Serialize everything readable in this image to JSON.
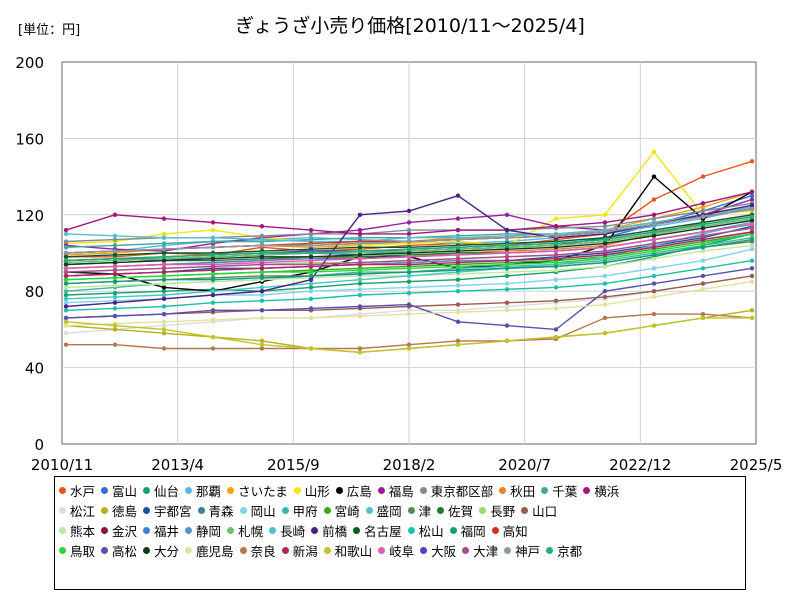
{
  "chart_data": {
    "type": "line",
    "title": "ぎょうざ小売り価格[2010/11～2025/4]",
    "unit_label": "[単位：円]",
    "ylim": [
      0,
      200
    ],
    "yticks": [
      "0",
      "40",
      "80",
      "120",
      "160",
      "200"
    ],
    "xticks": [
      "2010/11",
      "2013/4",
      "2015/9",
      "2018/2",
      "2020/7",
      "2022/12",
      "2025/5"
    ],
    "x_start": "2010-11",
    "x_end": "2025-05",
    "grid": true,
    "legend_placement": "bottom",
    "series": [
      {
        "name": "水戸",
        "color": "#e8541a",
        "values": [
          98,
          98,
          100,
          99,
          103,
          101,
          102,
          104,
          105,
          104,
          107,
          110,
          128,
          140,
          148
        ]
      },
      {
        "name": "富山",
        "color": "#2f6fd0",
        "values": [
          96,
          97,
          96,
          98,
          99,
          100,
          99,
          101,
          102,
          103,
          104,
          108,
          115,
          122,
          130
        ]
      },
      {
        "name": "仙台",
        "color": "#16a06a",
        "values": [
          78,
          79,
          80,
          81,
          80,
          82,
          84,
          85,
          86,
          88,
          90,
          93,
          98,
          104,
          110
        ]
      },
      {
        "name": "那覇",
        "color": "#5ab4ea",
        "values": [
          100,
          101,
          104,
          106,
          107,
          108,
          107,
          106,
          105,
          106,
          108,
          110,
          114,
          118,
          124
        ]
      },
      {
        "name": "さいたま",
        "color": "#f2a314",
        "values": [
          99,
          100,
          102,
          103,
          104,
          103,
          104,
          106,
          108,
          108,
          109,
          112,
          118,
          124,
          132
        ]
      },
      {
        "name": "山形",
        "color": "#f5e50c",
        "values": [
          105,
          106,
          110,
          112,
          108,
          106,
          104,
          105,
          106,
          104,
          118,
          120,
          153,
          120,
          122
        ]
      },
      {
        "name": "広島",
        "color": "#000000",
        "values": [
          90,
          89,
          82,
          80,
          85,
          90,
          98,
          98,
          92,
          94,
          96,
          104,
          140,
          118,
          132
        ]
      },
      {
        "name": "福島",
        "color": "#9a1fa0",
        "values": [
          104,
          102,
          101,
          105,
          108,
          110,
          112,
          116,
          118,
          120,
          114,
          112,
          116,
          120,
          128
        ]
      },
      {
        "name": "東京都区部",
        "color": "#7f8c94",
        "values": [
          106,
          107,
          108,
          108,
          109,
          110,
          110,
          112,
          112,
          112,
          113,
          114,
          118,
          122,
          126
        ]
      },
      {
        "name": "秋田",
        "color": "#f07f2a",
        "values": [
          92,
          93,
          94,
          95,
          96,
          98,
          97,
          98,
          100,
          101,
          102,
          104,
          110,
          116,
          120
        ]
      },
      {
        "name": "千葉",
        "color": "#41a89c",
        "values": [
          103,
          104,
          105,
          106,
          106,
          107,
          108,
          108,
          109,
          110,
          110,
          112,
          116,
          120,
          124
        ]
      },
      {
        "name": "横浜",
        "color": "#a5157d",
        "values": [
          112,
          120,
          118,
          116,
          114,
          112,
          110,
          110,
          112,
          112,
          114,
          116,
          120,
          126,
          132
        ]
      },
      {
        "name": "松江",
        "color": "#dcdcdc",
        "values": [
          58,
          60,
          62,
          64,
          66,
          66,
          68,
          70,
          70,
          72,
          74,
          76,
          80,
          84,
          88
        ]
      },
      {
        "name": "徳島",
        "color": "#b3b21a",
        "values": [
          62,
          60,
          58,
          56,
          54,
          50,
          48,
          50,
          52,
          54,
          56,
          58,
          62,
          66,
          70
        ]
      },
      {
        "name": "宇都宮",
        "color": "#1d4f9e",
        "values": [
          88,
          89,
          90,
          92,
          92,
          93,
          94,
          95,
          96,
          96,
          98,
          100,
          104,
          108,
          114
        ]
      },
      {
        "name": "青森",
        "color": "#3c7f99",
        "values": [
          96,
          97,
          97,
          98,
          99,
          100,
          101,
          101,
          102,
          103,
          104,
          106,
          110,
          114,
          118
        ]
      },
      {
        "name": "岡山",
        "color": "#7fd3ec",
        "values": [
          74,
          75,
          76,
          78,
          78,
          80,
          81,
          82,
          83,
          84,
          86,
          88,
          92,
          96,
          102
        ]
      },
      {
        "name": "甲府",
        "color": "#3cb8a8",
        "values": [
          80,
          82,
          84,
          85,
          86,
          88,
          90,
          90,
          92,
          93,
          94,
          96,
          100,
          104,
          108
        ]
      },
      {
        "name": "宮崎",
        "color": "#3aa81e",
        "values": [
          86,
          87,
          88,
          89,
          90,
          91,
          92,
          93,
          94,
          95,
          96,
          98,
          102,
          106,
          110
        ]
      },
      {
        "name": "盛岡",
        "color": "#55c0d0",
        "values": [
          110,
          109,
          108,
          108,
          107,
          106,
          106,
          108,
          108,
          109,
          110,
          112,
          116,
          120,
          124
        ]
      },
      {
        "name": "津",
        "color": "#56875a",
        "values": [
          84,
          85,
          86,
          87,
          88,
          88,
          89,
          90,
          91,
          92,
          93,
          95,
          99,
          103,
          106
        ]
      },
      {
        "name": "佐賀",
        "color": "#1e7d2c",
        "values": [
          94,
          95,
          96,
          96,
          97,
          98,
          98,
          99,
          100,
          100,
          101,
          103,
          107,
          111,
          115
        ]
      },
      {
        "name": "長野",
        "color": "#9adc6a",
        "values": [
          90,
          91,
          92,
          93,
          94,
          95,
          95,
          96,
          97,
          98,
          99,
          101,
          105,
          109,
          113
        ]
      },
      {
        "name": "山口",
        "color": "#9a5a4e",
        "values": [
          66,
          67,
          68,
          69,
          70,
          70,
          71,
          72,
          73,
          74,
          75,
          77,
          80,
          84,
          88
        ]
      },
      {
        "name": "熊本",
        "color": "#c2e8a0",
        "values": [
          82,
          83,
          84,
          85,
          86,
          87,
          88,
          88,
          89,
          90,
          91,
          93,
          97,
          101,
          104
        ]
      },
      {
        "name": "金沢",
        "color": "#8e1236",
        "values": [
          100,
          101,
          102,
          103,
          104,
          104,
          105,
          106,
          107,
          108,
          109,
          111,
          115,
          119,
          123
        ]
      },
      {
        "name": "福井",
        "color": "#4a7dd6",
        "values": [
          92,
          93,
          94,
          95,
          96,
          97,
          97,
          98,
          99,
          100,
          101,
          103,
          107,
          111,
          116
        ]
      },
      {
        "name": "静岡",
        "color": "#5f90c4",
        "values": [
          88,
          89,
          90,
          91,
          92,
          93,
          94,
          95,
          96,
          96,
          97,
          99,
          103,
          107,
          111
        ]
      },
      {
        "name": "札幌",
        "color": "#6fbf6f",
        "values": [
          95,
          96,
          97,
          98,
          99,
          100,
          100,
          101,
          102,
          103,
          104,
          106,
          110,
          114,
          118
        ]
      },
      {
        "name": "長崎",
        "color": "#48c6c6",
        "values": [
          76,
          77,
          78,
          80,
          82,
          84,
          86,
          88,
          90,
          92,
          94,
          98,
          104,
          110,
          116
        ]
      },
      {
        "name": "前橋",
        "color": "#4b2380",
        "values": [
          72,
          74,
          76,
          78,
          80,
          86,
          120,
          122,
          130,
          112,
          108,
          110,
          115,
          120,
          125
        ]
      },
      {
        "name": "名古屋",
        "color": "#0a5a22",
        "values": [
          98,
          99,
          100,
          100,
          101,
          102,
          103,
          103,
          104,
          105,
          106,
          108,
          112,
          116,
          120
        ]
      },
      {
        "name": "松山",
        "color": "#1cc0a8",
        "values": [
          70,
          71,
          72,
          74,
          75,
          76,
          78,
          79,
          80,
          81,
          82,
          84,
          88,
          92,
          96
        ]
      },
      {
        "name": "福岡",
        "color": "#1a9a7a",
        "values": [
          84,
          85,
          86,
          86,
          87,
          88,
          89,
          90,
          91,
          92,
          93,
          95,
          99,
          103,
          107
        ]
      },
      {
        "name": "高知",
        "color": "#d4301f",
        "values": [
          100,
          101,
          102,
          103,
          104,
          105,
          106,
          106,
          107,
          108,
          109,
          111,
          115,
          119,
          123
        ]
      },
      {
        "name": "鳥取",
        "color": "#27d83c",
        "values": [
          86,
          87,
          88,
          89,
          90,
          90,
          91,
          92,
          93,
          94,
          95,
          97,
          101,
          105,
          110
        ]
      },
      {
        "name": "高松",
        "color": "#5a4fb0",
        "values": [
          66,
          67,
          68,
          70,
          70,
          71,
          72,
          73,
          64,
          62,
          60,
          80,
          84,
          88,
          92
        ]
      },
      {
        "name": "大分",
        "color": "#0f3d1c",
        "values": [
          94,
          95,
          96,
          97,
          98,
          98,
          99,
          100,
          101,
          102,
          103,
          105,
          109,
          113,
          117
        ]
      },
      {
        "name": "鹿児島",
        "color": "#e6e0a0",
        "values": [
          62,
          63,
          64,
          65,
          66,
          66,
          67,
          68,
          69,
          70,
          71,
          73,
          77,
          81,
          85
        ]
      },
      {
        "name": "奈良",
        "color": "#b7774e",
        "values": [
          52,
          52,
          50,
          50,
          50,
          50,
          50,
          52,
          54,
          54,
          55,
          66,
          68,
          68,
          66
        ]
      },
      {
        "name": "新潟",
        "color": "#b3245e",
        "values": [
          88,
          89,
          90,
          91,
          92,
          93,
          94,
          94,
          95,
          96,
          97,
          99,
          103,
          107,
          111
        ]
      },
      {
        "name": "和歌山",
        "color": "#c4c22a",
        "values": [
          64,
          62,
          60,
          56,
          52,
          50,
          48,
          50,
          52,
          54,
          56,
          58,
          62,
          66,
          66
        ]
      },
      {
        "name": "岐阜",
        "color": "#e05cb2",
        "values": [
          92,
          93,
          94,
          94,
          95,
          96,
          97,
          98,
          99,
          100,
          101,
          103,
          107,
          111,
          115
        ]
      },
      {
        "name": "大阪",
        "color": "#4c3ed0",
        "values": [
          96,
          97,
          98,
          99,
          100,
          101,
          101,
          102,
          103,
          104,
          105,
          107,
          111,
          115,
          119
        ]
      },
      {
        "name": "大津",
        "color": "#a84c8c",
        "values": [
          90,
          91,
          92,
          93,
          94,
          94,
          95,
          96,
          97,
          98,
          99,
          101,
          105,
          109,
          113
        ]
      },
      {
        "name": "神戸",
        "color": "#8a98a8",
        "values": [
          100,
          101,
          102,
          103,
          104,
          104,
          105,
          106,
          107,
          108,
          109,
          111,
          115,
          119,
          123
        ]
      },
      {
        "name": "京都",
        "color": "#20b070",
        "values": [
          96,
          97,
          98,
          99,
          100,
          100,
          101,
          102,
          103,
          104,
          105,
          107,
          111,
          115,
          119
        ]
      }
    ],
    "x": [
      "2010/11",
      "2011/11",
      "2012/11",
      "2013/11",
      "2014/11",
      "2015/11",
      "2016/11",
      "2017/11",
      "2018/11",
      "2019/11",
      "2020/11",
      "2021/11",
      "2022/11",
      "2023/11",
      "2025/4"
    ]
  }
}
